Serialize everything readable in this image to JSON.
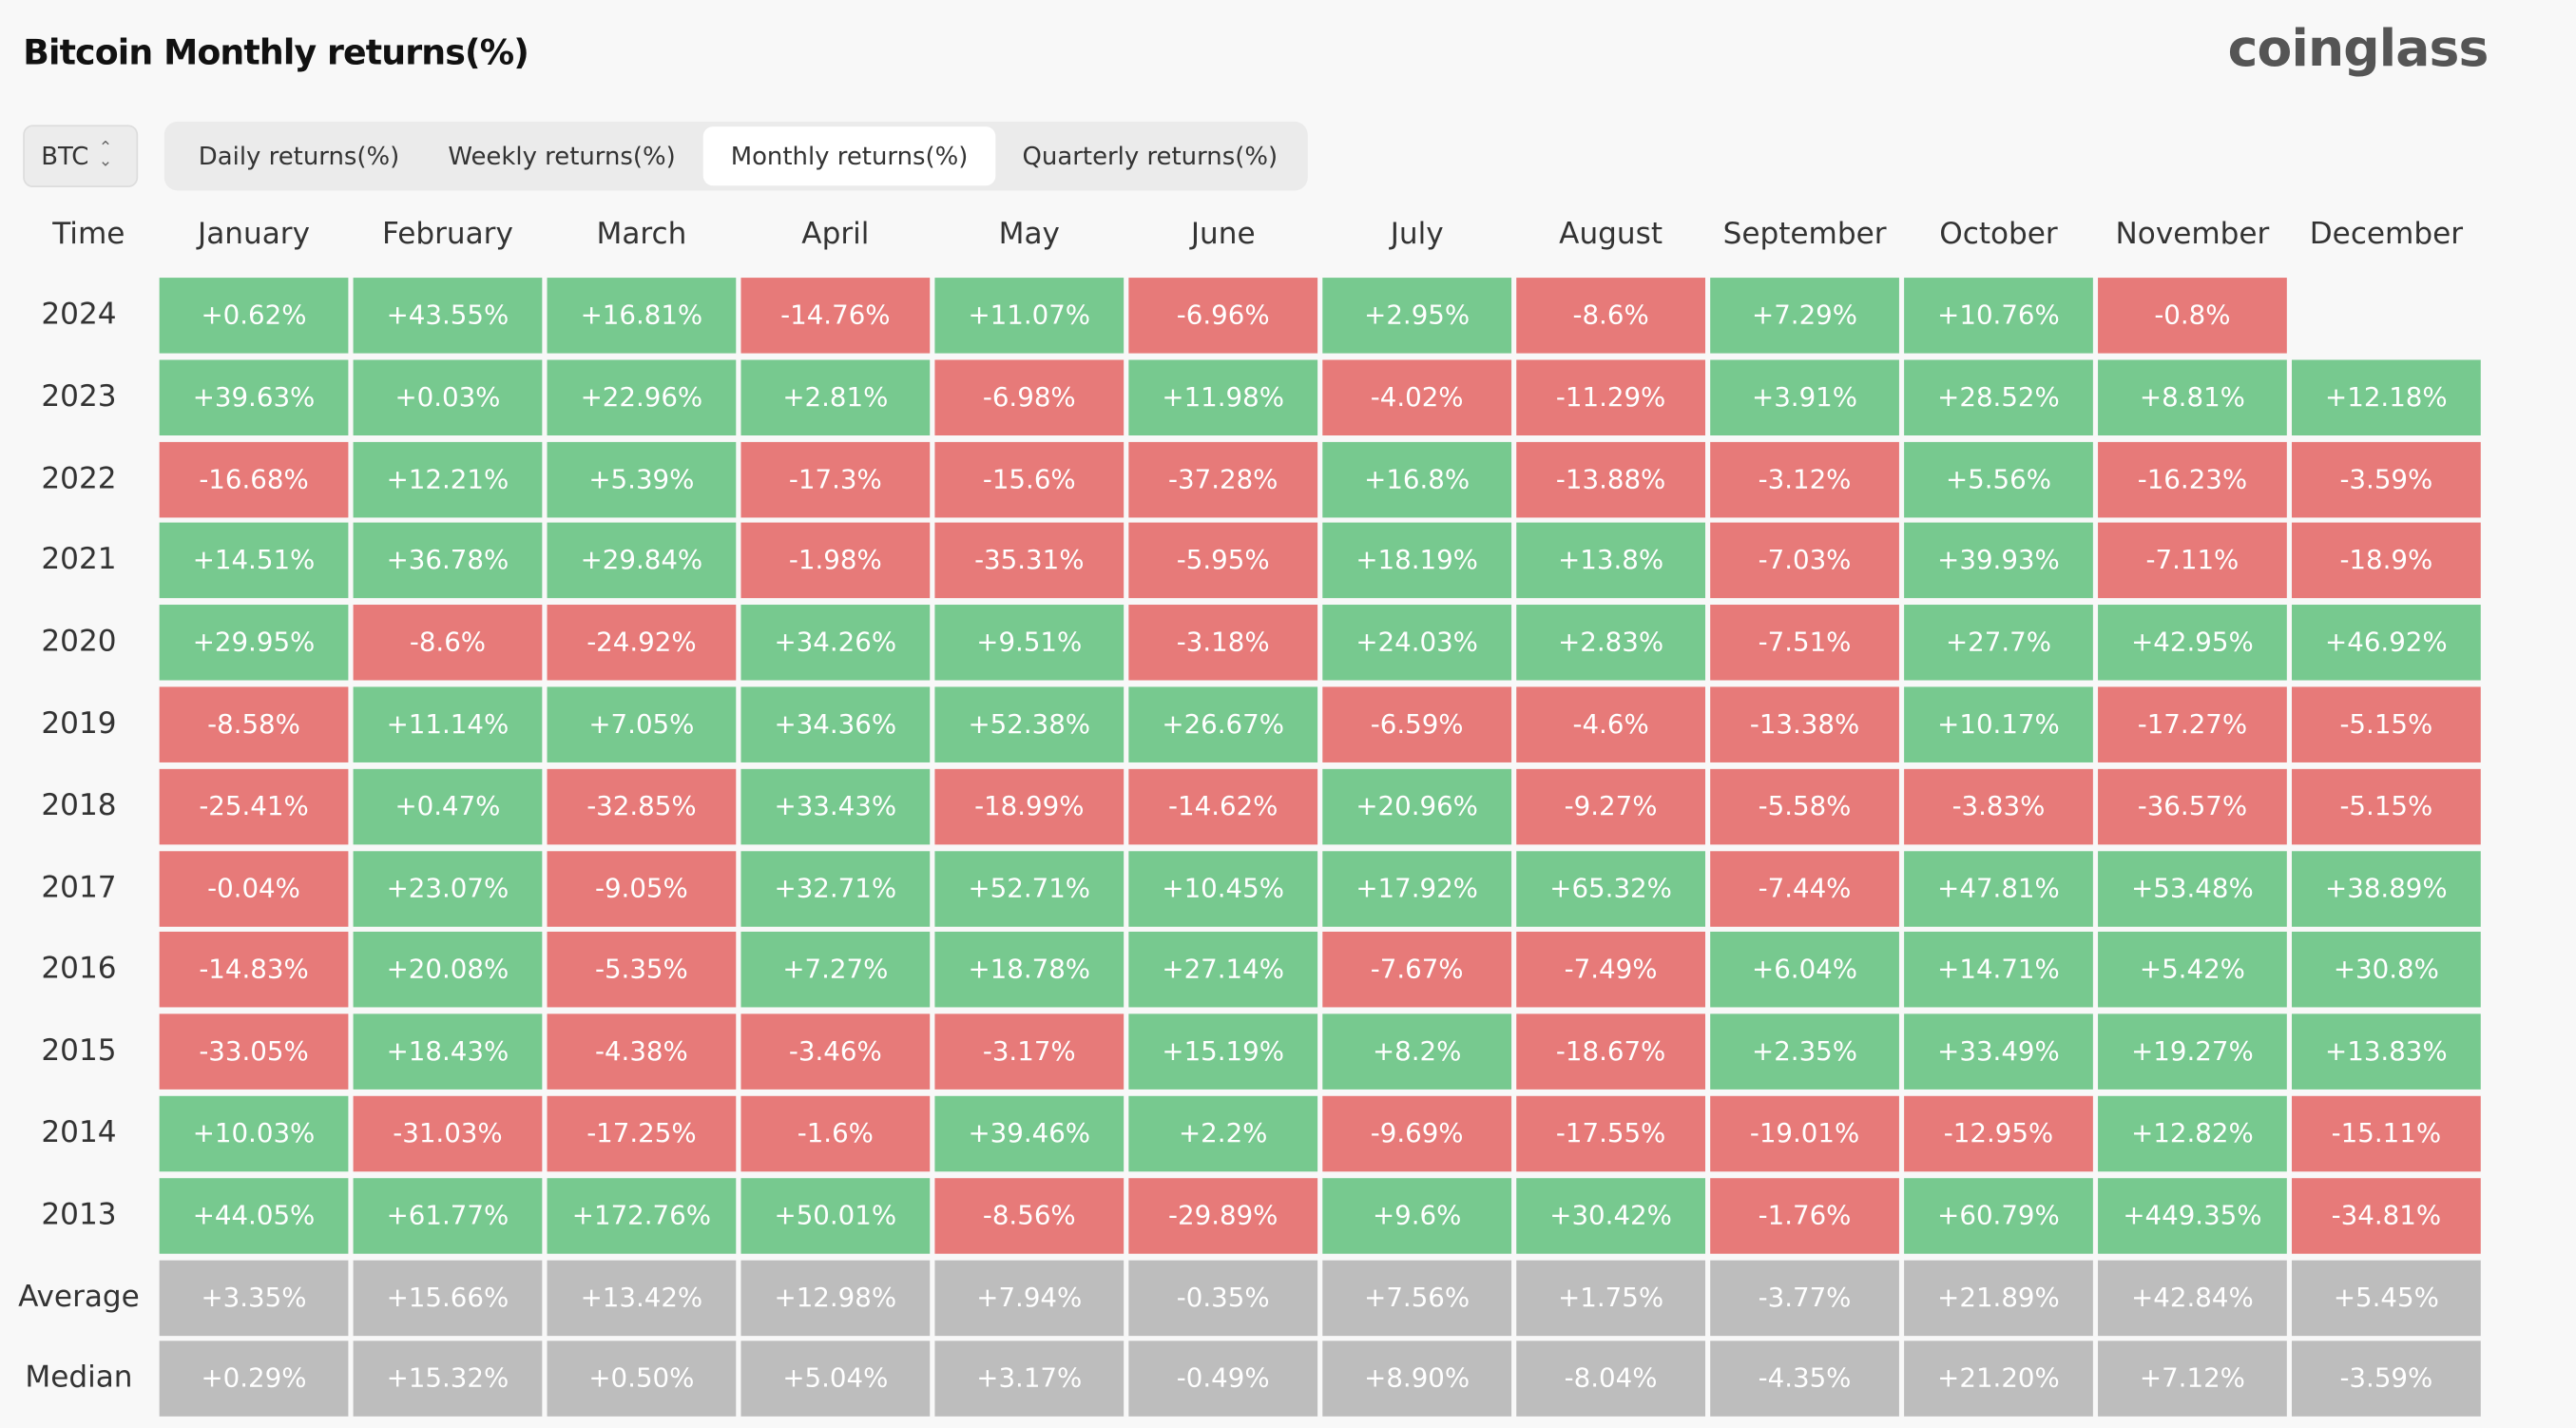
{
  "title": "Bitcoin Monthly returns(%)",
  "logo": "coinglass",
  "coin_select": {
    "value": "BTC",
    "icon": "chevron-up-down-icon"
  },
  "tabs": [
    {
      "label": "Daily returns(%)",
      "active": false
    },
    {
      "label": "Weekly returns(%)",
      "active": false
    },
    {
      "label": "Monthly returns(%)",
      "active": true
    },
    {
      "label": "Quarterly returns(%)",
      "active": false
    }
  ],
  "colors": {
    "positive": "#77c98f",
    "negative": "#e77a79",
    "summary": "#bdbdbd"
  },
  "table": {
    "time_header": "Time",
    "months": [
      "January",
      "February",
      "March",
      "April",
      "May",
      "June",
      "July",
      "August",
      "September",
      "October",
      "November",
      "December"
    ],
    "rows": [
      {
        "year": "2024",
        "values": [
          "+0.62%",
          "+43.55%",
          "+16.81%",
          "-14.76%",
          "+11.07%",
          "-6.96%",
          "+2.95%",
          "-8.6%",
          "+7.29%",
          "+10.76%",
          "-0.8%",
          ""
        ]
      },
      {
        "year": "2023",
        "values": [
          "+39.63%",
          "+0.03%",
          "+22.96%",
          "+2.81%",
          "-6.98%",
          "+11.98%",
          "-4.02%",
          "-11.29%",
          "+3.91%",
          "+28.52%",
          "+8.81%",
          "+12.18%"
        ]
      },
      {
        "year": "2022",
        "values": [
          "-16.68%",
          "+12.21%",
          "+5.39%",
          "-17.3%",
          "-15.6%",
          "-37.28%",
          "+16.8%",
          "-13.88%",
          "-3.12%",
          "+5.56%",
          "-16.23%",
          "-3.59%"
        ]
      },
      {
        "year": "2021",
        "values": [
          "+14.51%",
          "+36.78%",
          "+29.84%",
          "-1.98%",
          "-35.31%",
          "-5.95%",
          "+18.19%",
          "+13.8%",
          "-7.03%",
          "+39.93%",
          "-7.11%",
          "-18.9%"
        ]
      },
      {
        "year": "2020",
        "values": [
          "+29.95%",
          "-8.6%",
          "-24.92%",
          "+34.26%",
          "+9.51%",
          "-3.18%",
          "+24.03%",
          "+2.83%",
          "-7.51%",
          "+27.7%",
          "+42.95%",
          "+46.92%"
        ]
      },
      {
        "year": "2019",
        "values": [
          "-8.58%",
          "+11.14%",
          "+7.05%",
          "+34.36%",
          "+52.38%",
          "+26.67%",
          "-6.59%",
          "-4.6%",
          "-13.38%",
          "+10.17%",
          "-17.27%",
          "-5.15%"
        ]
      },
      {
        "year": "2018",
        "values": [
          "-25.41%",
          "+0.47%",
          "-32.85%",
          "+33.43%",
          "-18.99%",
          "-14.62%",
          "+20.96%",
          "-9.27%",
          "-5.58%",
          "-3.83%",
          "-36.57%",
          "-5.15%"
        ]
      },
      {
        "year": "2017",
        "values": [
          "-0.04%",
          "+23.07%",
          "-9.05%",
          "+32.71%",
          "+52.71%",
          "+10.45%",
          "+17.92%",
          "+65.32%",
          "-7.44%",
          "+47.81%",
          "+53.48%",
          "+38.89%"
        ]
      },
      {
        "year": "2016",
        "values": [
          "-14.83%",
          "+20.08%",
          "-5.35%",
          "+7.27%",
          "+18.78%",
          "+27.14%",
          "-7.67%",
          "-7.49%",
          "+6.04%",
          "+14.71%",
          "+5.42%",
          "+30.8%"
        ]
      },
      {
        "year": "2015",
        "values": [
          "-33.05%",
          "+18.43%",
          "-4.38%",
          "-3.46%",
          "-3.17%",
          "+15.19%",
          "+8.2%",
          "-18.67%",
          "+2.35%",
          "+33.49%",
          "+19.27%",
          "+13.83%"
        ]
      },
      {
        "year": "2014",
        "values": [
          "+10.03%",
          "-31.03%",
          "-17.25%",
          "-1.6%",
          "+39.46%",
          "+2.2%",
          "-9.69%",
          "-17.55%",
          "-19.01%",
          "-12.95%",
          "+12.82%",
          "-15.11%"
        ]
      },
      {
        "year": "2013",
        "values": [
          "+44.05%",
          "+61.77%",
          "+172.76%",
          "+50.01%",
          "-8.56%",
          "-29.89%",
          "+9.6%",
          "+30.42%",
          "-1.76%",
          "+60.79%",
          "+449.35%",
          "-34.81%"
        ]
      }
    ],
    "summary_rows": [
      {
        "label": "Average",
        "values": [
          "+3.35%",
          "+15.66%",
          "+13.42%",
          "+12.98%",
          "+7.94%",
          "-0.35%",
          "+7.56%",
          "+1.75%",
          "-3.77%",
          "+21.89%",
          "+42.84%",
          "+5.45%"
        ]
      },
      {
        "label": "Median",
        "values": [
          "+0.29%",
          "+15.32%",
          "+0.50%",
          "+5.04%",
          "+3.17%",
          "-0.49%",
          "+8.90%",
          "-8.04%",
          "-4.35%",
          "+21.20%",
          "+7.12%",
          "-3.59%"
        ]
      }
    ]
  }
}
